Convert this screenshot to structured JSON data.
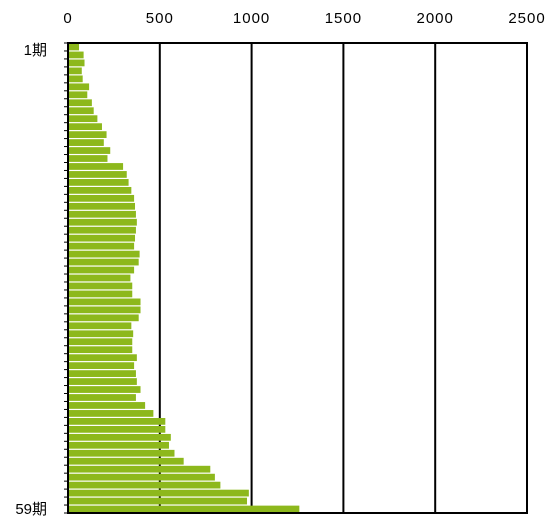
{
  "chart_data": {
    "type": "bar",
    "orientation": "horizontal",
    "x_axis_position": "top",
    "xlim": [
      0,
      2500
    ],
    "x_ticks": [
      "0",
      "500",
      "1000",
      "1500",
      "2000",
      "2500"
    ],
    "grid": "vertical",
    "first_category_label": "1期",
    "last_category_label": "59期",
    "bar_color": "#8DB81C",
    "values": [
      60,
      85,
      90,
      75,
      80,
      115,
      105,
      130,
      140,
      160,
      185,
      210,
      195,
      230,
      215,
      300,
      320,
      330,
      345,
      360,
      365,
      370,
      375,
      370,
      365,
      360,
      390,
      385,
      360,
      340,
      350,
      350,
      395,
      395,
      385,
      345,
      355,
      350,
      350,
      375,
      360,
      370,
      375,
      395,
      370,
      420,
      465,
      530,
      530,
      560,
      550,
      580,
      630,
      775,
      800,
      830,
      985,
      975,
      1260
    ]
  }
}
